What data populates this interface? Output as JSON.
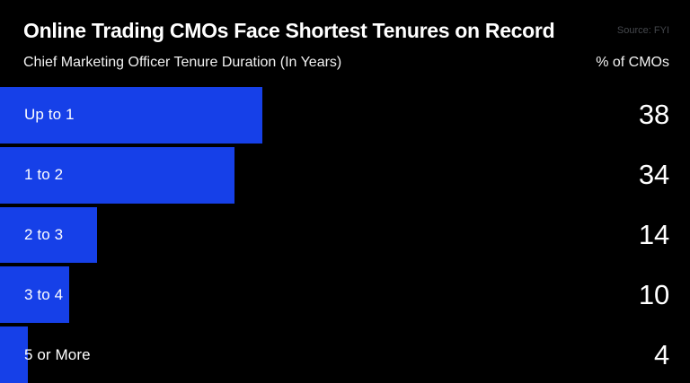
{
  "header": {
    "title": "Online Trading CMOs Face Shortest Tenures on Record",
    "source": "Source: FYI",
    "left_subtitle": "Chief Marketing Officer Tenure Duration (In Years)",
    "right_subtitle": "% of CMOs"
  },
  "colors": {
    "background": "#000000",
    "bar": "#1640e8",
    "title_text": "#ffffff",
    "source_text": "#45484d",
    "subtitle_text": "#f2f2f2"
  },
  "chart_data": {
    "type": "bar",
    "orientation": "horizontal",
    "title": "Online Trading CMOs Face Shortest Tenures on Record",
    "subtitle": "Chief Marketing Officer Tenure Duration (In Years)",
    "value_axis_label": "% of CMOs",
    "source": "Source: FYI",
    "categories": [
      "Up to 1",
      "1 to 2",
      "2 to 3",
      "3 to 4",
      "5 or More"
    ],
    "values": [
      38,
      34,
      14,
      10,
      4
    ],
    "xlim": [
      0,
      100
    ],
    "grid": false,
    "legend": false,
    "value_labels_position": "right-aligned"
  }
}
